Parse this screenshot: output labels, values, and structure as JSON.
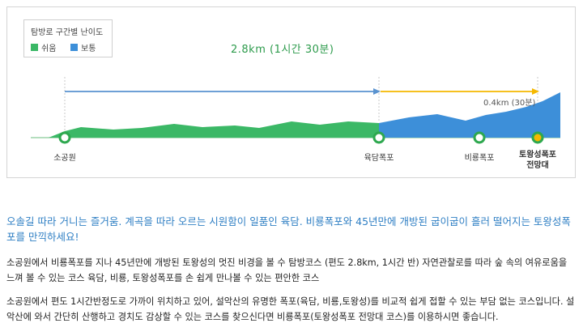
{
  "legend": {
    "title": "탐방로 구간별 난이도",
    "easy_label": "쉬움",
    "normal_label": "보통",
    "easy_color": "#3bb866",
    "normal_color": "#3d8fd9"
  },
  "route": {
    "total_label": "2.8km (1시간 30분)",
    "extra_label": "0.4km (30분)",
    "stops": [
      {
        "name": "소공원",
        "name_line2": ""
      },
      {
        "name": "육담폭포",
        "name_line2": ""
      },
      {
        "name": "비룡폭포",
        "name_line2": ""
      },
      {
        "name": "토왕성폭포",
        "name_line2": "전망대"
      }
    ],
    "arrow_main_color": "#5a93d0",
    "arrow_extra_color": "#f5b800"
  },
  "description": {
    "headline": "오솔길 따라 거니는 즐거움. 계곡을 따라 오르는 시원함이 일품인 육담. 비룡폭포와 45년만에 개방된 굽이굽이 흘러 떨어지는 토왕성폭포를 만끽하세요!",
    "paragraph1": "소공원에서 비룡폭포를 지나 45년만에 개방된 토왕성의 멋진 비경을 볼 수 탐방코스 (편도 2.8km, 1시간 반) 자연관찰로를 따라 숲 속의 여유로움을 느껴 볼 수 있는 코스 육담, 비룡, 토왕성폭포를 손 쉽게 만나볼 수 있는 편안한 코스",
    "paragraph2": "소공원에서 편도 1시간반정도로 가까이 위치하고 있어, 설악산의 유명한 폭포(육담, 비룡,토왕성)를 비교적 쉽게 접할 수 있는 부담 없는 코스입니다. 설악산에 와서 간단히 산행하고 경치도 감상할 수 있는 코스를 찾으신다면 비룡폭포(토왕성폭포 전망대 코스)를 이용하시면 좋습니다."
  }
}
